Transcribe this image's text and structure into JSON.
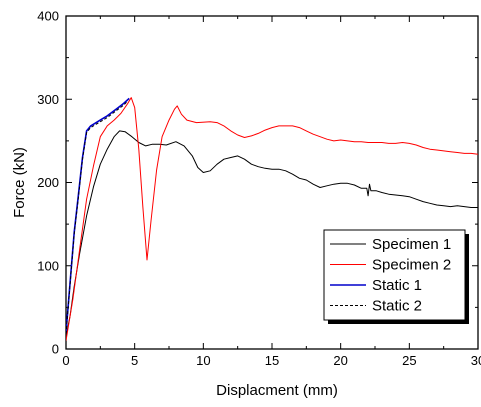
{
  "chart_data": {
    "type": "line",
    "title": "",
    "xlabel": "Displacment (mm)",
    "ylabel": "Force (kN)",
    "xlim": [
      0,
      30
    ],
    "ylim": [
      0,
      400
    ],
    "xticks": [
      0,
      5,
      10,
      15,
      20,
      25,
      30
    ],
    "yticks": [
      0,
      100,
      200,
      300,
      400
    ],
    "grid": false,
    "legend_position": "lower-right",
    "series": [
      {
        "name": "Specimen 1",
        "color": "#000000",
        "dash": "solid",
        "points": [
          [
            0,
            15
          ],
          [
            0.3,
            40
          ],
          [
            0.6,
            75
          ],
          [
            1,
            115
          ],
          [
            1.5,
            160
          ],
          [
            2,
            195
          ],
          [
            2.5,
            222
          ],
          [
            3,
            240
          ],
          [
            3.5,
            255
          ],
          [
            3.9,
            262
          ],
          [
            4.3,
            261
          ],
          [
            4.8,
            255
          ],
          [
            5.3,
            248
          ],
          [
            5.8,
            244
          ],
          [
            6.3,
            246
          ],
          [
            6.8,
            246
          ],
          [
            7.3,
            245
          ],
          [
            8,
            249
          ],
          [
            8.6,
            244
          ],
          [
            9.2,
            232
          ],
          [
            9.6,
            218
          ],
          [
            10,
            212
          ],
          [
            10.5,
            214
          ],
          [
            11,
            222
          ],
          [
            11.5,
            228
          ],
          [
            12,
            230
          ],
          [
            12.5,
            232
          ],
          [
            13,
            228
          ],
          [
            13.5,
            222
          ],
          [
            14,
            219
          ],
          [
            14.5,
            217
          ],
          [
            15,
            216
          ],
          [
            15.5,
            216
          ],
          [
            16,
            214
          ],
          [
            16.5,
            210
          ],
          [
            17,
            205
          ],
          [
            17.5,
            203
          ],
          [
            18,
            198
          ],
          [
            18.5,
            194
          ],
          [
            19,
            196
          ],
          [
            19.5,
            198
          ],
          [
            20,
            199
          ],
          [
            20.5,
            199
          ],
          [
            21,
            197
          ],
          [
            21.5,
            193
          ],
          [
            21.9,
            193
          ],
          [
            22,
            184
          ],
          [
            22.1,
            198
          ],
          [
            22.2,
            190
          ],
          [
            22.6,
            190
          ],
          [
            23,
            188
          ],
          [
            23.5,
            186
          ],
          [
            24,
            185
          ],
          [
            24.5,
            184
          ],
          [
            25,
            183
          ],
          [
            25.5,
            180
          ],
          [
            26,
            177
          ],
          [
            26.5,
            175
          ],
          [
            27,
            173
          ],
          [
            27.5,
            172
          ],
          [
            28,
            171
          ],
          [
            28.5,
            172
          ],
          [
            29,
            171
          ],
          [
            29.5,
            170
          ],
          [
            30,
            170
          ]
        ]
      },
      {
        "name": "Specimen 2",
        "color": "#ff0000",
        "dash": "solid",
        "points": [
          [
            0,
            10
          ],
          [
            0.5,
            60
          ],
          [
            1,
            120
          ],
          [
            1.5,
            180
          ],
          [
            2,
            220
          ],
          [
            2.5,
            255
          ],
          [
            3,
            268
          ],
          [
            3.5,
            275
          ],
          [
            4,
            283
          ],
          [
            4.5,
            295
          ],
          [
            4.75,
            302
          ],
          [
            5,
            290
          ],
          [
            5.3,
            240
          ],
          [
            5.6,
            170
          ],
          [
            5.9,
            107
          ],
          [
            6.2,
            155
          ],
          [
            6.6,
            215
          ],
          [
            7,
            255
          ],
          [
            7.5,
            275
          ],
          [
            7.9,
            288
          ],
          [
            8.1,
            292
          ],
          [
            8.4,
            282
          ],
          [
            8.8,
            275
          ],
          [
            9.5,
            272
          ],
          [
            10.5,
            273
          ],
          [
            11,
            272
          ],
          [
            11.5,
            268
          ],
          [
            12,
            262
          ],
          [
            12.5,
            257
          ],
          [
            13,
            254
          ],
          [
            13.5,
            256
          ],
          [
            14,
            259
          ],
          [
            14.5,
            263
          ],
          [
            15,
            266
          ],
          [
            15.5,
            268
          ],
          [
            16,
            268
          ],
          [
            16.5,
            268
          ],
          [
            17,
            266
          ],
          [
            17.5,
            262
          ],
          [
            18,
            258
          ],
          [
            18.5,
            255
          ],
          [
            19,
            252
          ],
          [
            19.5,
            250
          ],
          [
            20,
            251
          ],
          [
            20.5,
            250
          ],
          [
            21,
            249
          ],
          [
            21.5,
            249
          ],
          [
            22,
            248
          ],
          [
            22.5,
            248
          ],
          [
            23,
            248
          ],
          [
            23.5,
            247
          ],
          [
            24,
            247
          ],
          [
            24.5,
            248
          ],
          [
            25,
            247
          ],
          [
            25.5,
            245
          ],
          [
            26,
            242
          ],
          [
            26.5,
            240
          ],
          [
            27,
            239
          ],
          [
            27.5,
            238
          ],
          [
            28,
            237
          ],
          [
            28.5,
            236
          ],
          [
            29,
            235
          ],
          [
            29.5,
            235
          ],
          [
            30,
            234
          ]
        ]
      },
      {
        "name": "Static 1",
        "color": "#0000cc",
        "dash": "solid",
        "points": [
          [
            0,
            20
          ],
          [
            0.3,
            80
          ],
          [
            0.6,
            140
          ],
          [
            0.9,
            185
          ],
          [
            1.2,
            230
          ],
          [
            1.5,
            262
          ],
          [
            1.8,
            268
          ],
          [
            2.2,
            272
          ],
          [
            2.6,
            276
          ],
          [
            3,
            280
          ],
          [
            3.4,
            285
          ],
          [
            3.8,
            290
          ],
          [
            4.2,
            295
          ],
          [
            4.6,
            301
          ]
        ]
      },
      {
        "name": "Static 2",
        "color": "#000000",
        "dash": "dashed",
        "points": [
          [
            0,
            18
          ],
          [
            0.3,
            78
          ],
          [
            0.6,
            138
          ],
          [
            0.9,
            182
          ],
          [
            1.2,
            228
          ],
          [
            1.5,
            260
          ],
          [
            1.8,
            266
          ],
          [
            2.2,
            270
          ],
          [
            2.6,
            274
          ],
          [
            3,
            278
          ],
          [
            3.4,
            283
          ],
          [
            3.8,
            288
          ],
          [
            4.2,
            293
          ],
          [
            4.5,
            298
          ]
        ]
      }
    ]
  }
}
